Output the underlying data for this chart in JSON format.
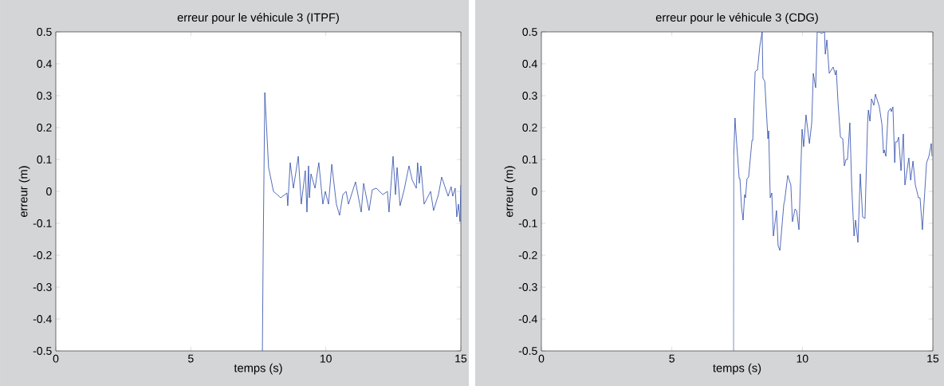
{
  "chart_data": [
    {
      "type": "line",
      "title": "erreur pour le véhicule 3 (ITPF)",
      "xlabel": "temps (s)",
      "ylabel": "erreur (m)",
      "xlim": [
        0,
        15
      ],
      "ylim": [
        -0.5,
        0.5
      ],
      "xticks": [
        0,
        5,
        10,
        15
      ],
      "yticks": [
        -0.5,
        -0.4,
        -0.3,
        -0.2,
        -0.1,
        0,
        0.1,
        0.2,
        0.3,
        0.4,
        0.5
      ],
      "grid": false,
      "marker": "none",
      "line_style": "solid",
      "series": [
        {
          "color": "#2a48a8",
          "x": [
            7.65,
            7.68,
            7.74,
            7.88,
            8.06,
            8.33,
            8.56,
            8.59,
            8.68,
            8.8,
            8.98,
            9.09,
            9.24,
            9.3,
            9.36,
            9.39,
            9.45,
            9.6,
            9.74,
            9.89,
            9.98,
            10.1,
            10.22,
            10.39,
            10.51,
            10.63,
            10.75,
            10.84,
            10.95,
            11.1,
            11.31,
            11.4,
            11.6,
            11.72,
            11.87,
            12.11,
            12.28,
            12.34,
            12.49,
            12.58,
            12.64,
            12.75,
            12.9,
            13.08,
            13.2,
            13.35,
            13.4,
            13.46,
            13.52,
            13.64,
            13.88,
            13.99,
            14.17,
            14.29,
            14.53,
            14.64,
            14.7,
            14.79,
            14.85,
            14.91,
            14.97,
            15.0
          ],
          "values": [
            -0.5,
            -0.18,
            0.31,
            0.075,
            0,
            -0.02,
            -0.005,
            -0.045,
            0.09,
            0.01,
            0.11,
            -0.04,
            0.065,
            -0.065,
            0.08,
            -0.02,
            0.055,
            0.01,
            0.09,
            -0.04,
            0,
            -0.04,
            0.085,
            -0.04,
            -0.075,
            -0.01,
            0,
            -0.04,
            -0.01,
            0.03,
            -0.065,
            0.025,
            -0.06,
            0.005,
            0.01,
            -0.01,
            0,
            -0.065,
            0.11,
            -0.01,
            0.075,
            -0.045,
            0.005,
            0.08,
            0.035,
            0.01,
            0.09,
            0.025,
            0.08,
            -0.04,
            0,
            -0.06,
            -0.01,
            0.045,
            -0.015,
            0.015,
            -0.015,
            0.01,
            -0.08,
            -0.04,
            -0.095,
            0.02
          ]
        }
      ]
    },
    {
      "type": "line",
      "title": "erreur pour le véhicule 3 (CDG)",
      "xlabel": "temps (s)",
      "ylabel": "erreur (m)",
      "xlim": [
        0,
        15
      ],
      "ylim": [
        -0.5,
        0.5
      ],
      "xticks": [
        0,
        5,
        10,
        15
      ],
      "yticks": [
        -0.5,
        -0.4,
        -0.3,
        -0.2,
        -0.1,
        0,
        0.1,
        0.2,
        0.3,
        0.4,
        0.5
      ],
      "grid": false,
      "marker": "none",
      "line_style": "solid",
      "series": [
        {
          "color": "#2a48a8",
          "x": [
            7.36,
            7.37,
            7.42,
            7.45,
            7.58,
            7.61,
            7.67,
            7.73,
            7.79,
            7.82,
            7.88,
            7.94,
            8.07,
            8.1,
            8.19,
            8.25,
            8.28,
            8.37,
            8.46,
            8.49,
            8.56,
            8.68,
            8.71,
            8.77,
            8.83,
            8.89,
            9.01,
            9.07,
            9.14,
            9.29,
            9.32,
            9.44,
            9.56,
            9.62,
            9.72,
            9.78,
            9.87,
            9.99,
            10.05,
            10.14,
            10.27,
            10.36,
            10.42,
            10.51,
            10.57,
            10.66,
            10.72,
            10.85,
            10.88,
            10.94,
            11.03,
            11.18,
            11.27,
            11.3,
            11.37,
            11.46,
            11.55,
            11.61,
            11.67,
            11.73,
            11.82,
            11.89,
            11.98,
            12.04,
            12.13,
            12.22,
            12.31,
            12.4,
            12.5,
            12.53,
            12.59,
            12.65,
            12.74,
            12.8,
            12.95,
            13.05,
            13.11,
            13.14,
            13.2,
            13.29,
            13.38,
            13.41,
            13.47,
            13.54,
            13.57,
            13.63,
            13.69,
            13.78,
            13.87,
            13.93,
            14.08,
            14.15,
            14.24,
            14.33,
            14.45,
            14.51,
            14.6,
            14.76,
            14.85,
            14.94,
            14.97
          ],
          "values": [
            -0.5,
            0.11,
            0.23,
            0.19,
            0.04,
            0.04,
            -0.05,
            -0.09,
            -0.01,
            -0.02,
            0.04,
            0.045,
            0.16,
            0.16,
            0.375,
            0.38,
            0.38,
            0.455,
            0.5,
            0.355,
            0.345,
            0.165,
            0.19,
            -0.02,
            -0.005,
            -0.14,
            -0.06,
            -0.17,
            -0.185,
            -0.04,
            -0.03,
            0.05,
            0.02,
            -0.095,
            -0.055,
            -0.06,
            -0.12,
            0.195,
            0.14,
            0.24,
            0.15,
            0.215,
            0.37,
            0.325,
            0.5,
            0.5,
            0.495,
            0.5,
            0.43,
            0.475,
            0.37,
            0.39,
            0.365,
            0.38,
            0.275,
            0.17,
            0.165,
            0.08,
            0.1,
            0.1,
            0.215,
            0.02,
            -0.14,
            -0.09,
            -0.16,
            0.055,
            -0.08,
            -0.085,
            0.215,
            0.255,
            0.22,
            0.29,
            0.27,
            0.305,
            0.265,
            0.21,
            0.12,
            0.13,
            0.11,
            0.25,
            0.26,
            0.25,
            0.265,
            0.09,
            0.155,
            0.155,
            0.17,
            0.065,
            0.18,
            0.02,
            0.105,
            0.035,
            0.095,
            0.02,
            -0.02,
            -0.02,
            -0.12,
            0.09,
            0.11,
            0.15,
            0.11
          ]
        }
      ]
    }
  ]
}
